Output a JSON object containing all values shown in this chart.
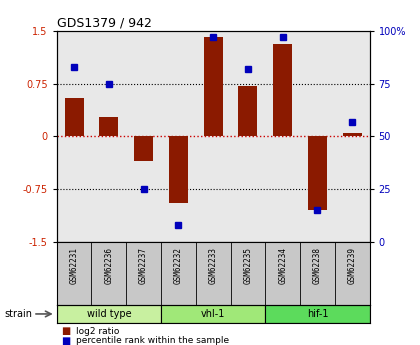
{
  "title": "GDS1379 / 942",
  "samples": [
    "GSM62231",
    "GSM62236",
    "GSM62237",
    "GSM62232",
    "GSM62233",
    "GSM62235",
    "GSM62234",
    "GSM62238",
    "GSM62239"
  ],
  "log2_ratio": [
    0.55,
    0.28,
    -0.35,
    -0.95,
    1.42,
    0.72,
    1.32,
    -1.05,
    0.05
  ],
  "percentile_rank": [
    83,
    75,
    25,
    8,
    97,
    82,
    97,
    15,
    57
  ],
  "groups": [
    {
      "label": "wild type",
      "start": 0,
      "end": 3,
      "color": "#c8f0a0"
    },
    {
      "label": "vhl-1",
      "start": 3,
      "end": 6,
      "color": "#a0e878"
    },
    {
      "label": "hif-1",
      "start": 6,
      "end": 9,
      "color": "#5cdb5c"
    }
  ],
  "ylim_left": [
    -1.5,
    1.5
  ],
  "ylim_right": [
    0,
    100
  ],
  "yticks_left": [
    -1.5,
    -0.75,
    0,
    0.75,
    1.5
  ],
  "yticks_right": [
    0,
    25,
    50,
    75,
    100
  ],
  "bar_color": "#8b1a00",
  "dot_color": "#0000bb",
  "hline_color": "#cc0000",
  "grid_color": "#000000",
  "bg_color": "#ffffff",
  "plot_bg": "#e8e8e8",
  "label_bg": "#c8c8c8",
  "strain_label": "strain",
  "legend_log2": "log2 ratio",
  "legend_pct": "percentile rank within the sample"
}
